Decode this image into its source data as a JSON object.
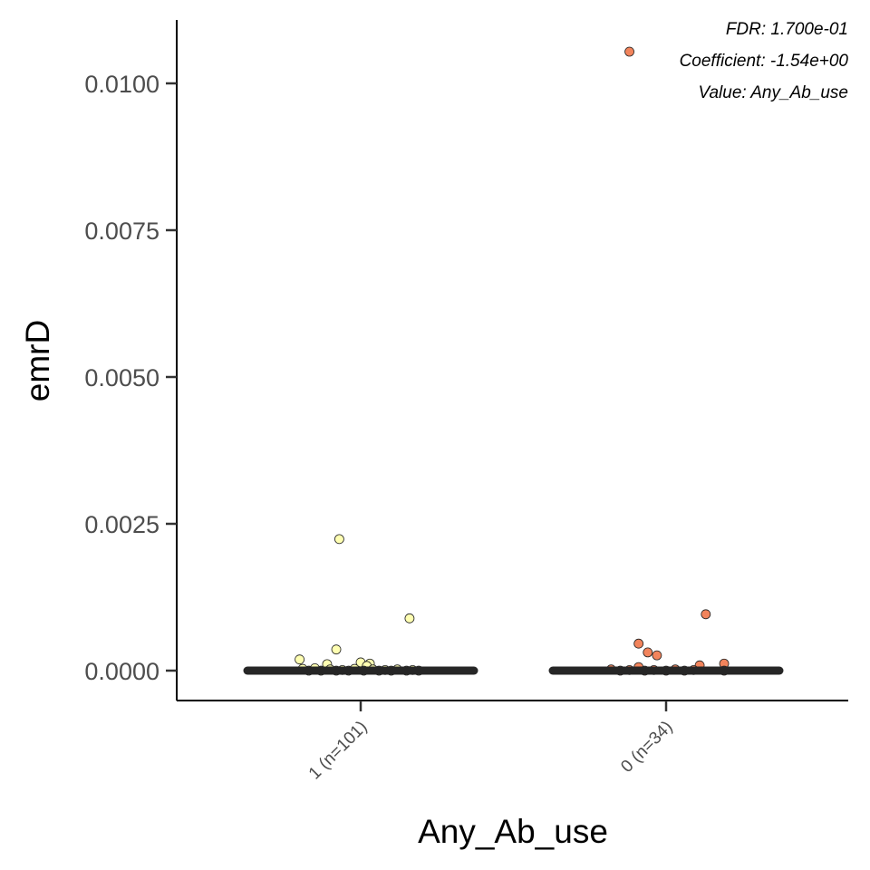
{
  "chart_data": {
    "type": "scatter",
    "subtype": "jitter strip plot with median bars",
    "xlabel": "Any_Ab_use",
    "ylabel": "emrD",
    "ylim": [
      -0.0005,
      0.011
    ],
    "yticks": [
      0.0,
      0.0025,
      0.005,
      0.0075,
      0.01
    ],
    "ytick_labels": [
      "0.0000",
      "0.0025",
      "0.0050",
      "0.0075",
      "0.0100"
    ],
    "grid": false,
    "legend": "none",
    "categories": [
      "1 (n=101)",
      "0 (n=34)"
    ],
    "annotations": [
      "FDR: 1.700e-01",
      "Coefficient: -1.54e+00",
      "Value: Any_Ab_use"
    ],
    "series": [
      {
        "category": "1 (n=101)",
        "color": "#ffffb2",
        "median": 0.0,
        "points": [
          {
            "jitter": -0.07,
            "y": 0.00224
          },
          {
            "jitter": 0.16,
            "y": 0.00089
          },
          {
            "jitter": -0.08,
            "y": 0.00036
          },
          {
            "jitter": -0.2,
            "y": 0.00019
          },
          {
            "jitter": -0.11,
            "y": 0.00011
          },
          {
            "jitter": 0.0,
            "y": 0.00014
          },
          {
            "jitter": 0.03,
            "y": 0.00012
          },
          {
            "jitter": 0.02,
            "y": 8e-05
          },
          {
            "jitter": -0.19,
            "y": 3e-05
          },
          {
            "jitter": -0.17,
            "y": 0.0
          },
          {
            "jitter": -0.15,
            "y": 4e-05
          },
          {
            "jitter": -0.13,
            "y": 0.0
          },
          {
            "jitter": -0.1,
            "y": 2e-05
          },
          {
            "jitter": -0.08,
            "y": 0.0
          },
          {
            "jitter": -0.06,
            "y": 1e-05
          },
          {
            "jitter": -0.04,
            "y": 0.0
          },
          {
            "jitter": -0.02,
            "y": 3e-05
          },
          {
            "jitter": 0.01,
            "y": 0.0
          },
          {
            "jitter": 0.04,
            "y": 2e-05
          },
          {
            "jitter": 0.06,
            "y": 0.0
          },
          {
            "jitter": 0.08,
            "y": 1e-05
          },
          {
            "jitter": 0.1,
            "y": 0.0
          },
          {
            "jitter": 0.12,
            "y": 2e-05
          },
          {
            "jitter": 0.15,
            "y": 0.0
          },
          {
            "jitter": 0.17,
            "y": 1e-05
          },
          {
            "jitter": 0.19,
            "y": 0.0
          }
        ]
      },
      {
        "category": "0 (n=34)",
        "color": "#f2845c",
        "median": 0.0,
        "points": [
          {
            "jitter": -0.12,
            "y": 0.01054
          },
          {
            "jitter": 0.13,
            "y": 0.00096
          },
          {
            "jitter": -0.09,
            "y": 0.00046
          },
          {
            "jitter": -0.06,
            "y": 0.00031
          },
          {
            "jitter": -0.03,
            "y": 0.00026
          },
          {
            "jitter": 0.19,
            "y": 0.00012
          },
          {
            "jitter": 0.11,
            "y": 9e-05
          },
          {
            "jitter": -0.09,
            "y": 6e-05
          },
          {
            "jitter": -0.18,
            "y": 2e-05
          },
          {
            "jitter": -0.15,
            "y": 0.0
          },
          {
            "jitter": -0.12,
            "y": 1e-05
          },
          {
            "jitter": -0.07,
            "y": 0.0
          },
          {
            "jitter": -0.04,
            "y": 1e-05
          },
          {
            "jitter": 0.0,
            "y": 0.0
          },
          {
            "jitter": 0.03,
            "y": 2e-05
          },
          {
            "jitter": 0.06,
            "y": 0.0
          },
          {
            "jitter": 0.09,
            "y": 1e-05
          },
          {
            "jitter": 0.19,
            "y": 0.0
          }
        ]
      }
    ]
  }
}
